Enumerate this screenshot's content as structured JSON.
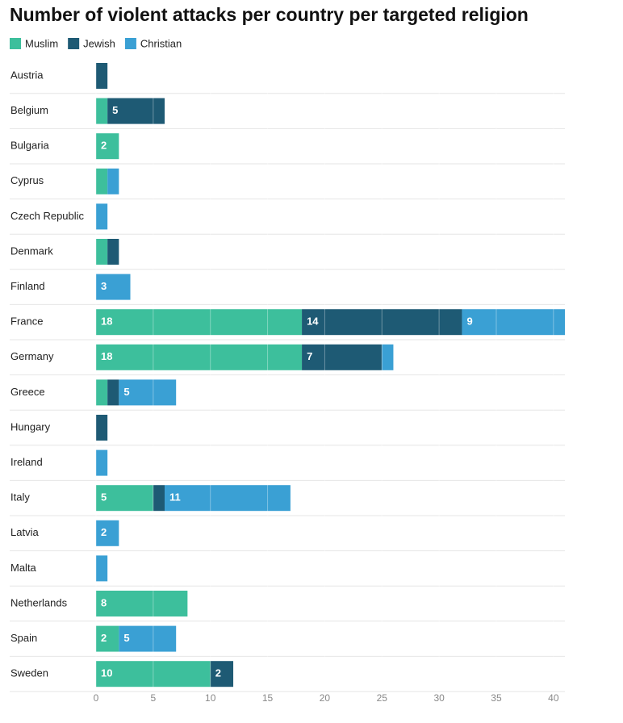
{
  "chart_data": {
    "type": "stacked-bar",
    "orientation": "horizontal",
    "title": "Number of violent attacks per country per targeted religion",
    "categories": [
      "Austria",
      "Belgium",
      "Bulgaria",
      "Cyprus",
      "Czech Republic",
      "Denmark",
      "Finland",
      "France",
      "Germany",
      "Greece",
      "Hungary",
      "Ireland",
      "Italy",
      "Latvia",
      "Malta",
      "Netherlands",
      "Spain",
      "Sweden"
    ],
    "series": [
      {
        "name": "Muslim",
        "color": "#3dbf9c",
        "values": [
          0,
          1,
          2,
          1,
          0,
          1,
          0,
          18,
          18,
          1,
          0,
          0,
          5,
          0,
          0,
          8,
          2,
          10
        ]
      },
      {
        "name": "Jewish",
        "color": "#1e5a74",
        "values": [
          1,
          5,
          0,
          0,
          0,
          1,
          0,
          14,
          7,
          1,
          1,
          0,
          1,
          0,
          0,
          0,
          0,
          2
        ]
      },
      {
        "name": "Christian",
        "color": "#3aa0d4",
        "values": [
          0,
          0,
          0,
          1,
          1,
          0,
          3,
          9,
          1,
          5,
          0,
          1,
          11,
          2,
          1,
          0,
          5,
          0
        ]
      }
    ],
    "xlim": [
      0,
      41
    ],
    "xticks": [
      0,
      5,
      10,
      15,
      20,
      25,
      30,
      35,
      40
    ],
    "grid": true
  }
}
